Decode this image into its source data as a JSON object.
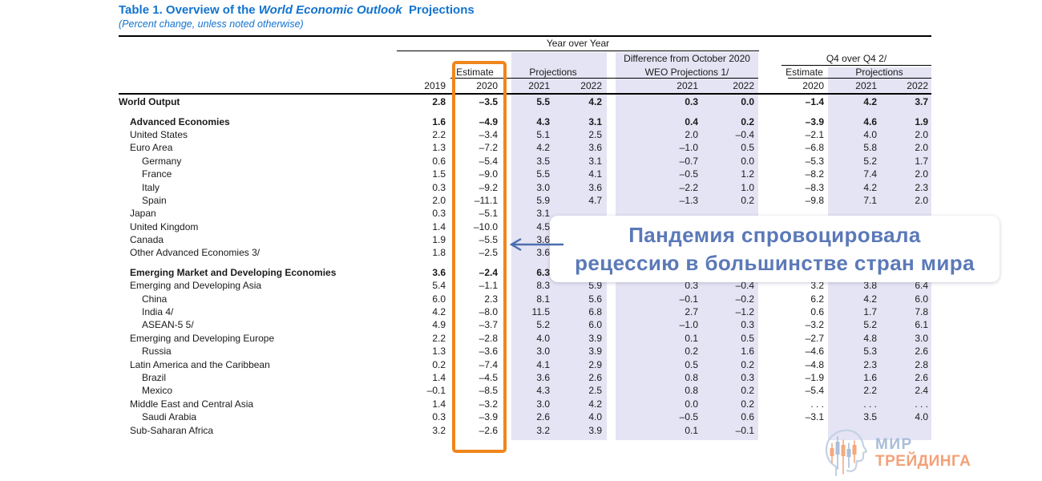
{
  "title": {
    "prefix": "Table 1. Overview of the ",
    "italic": "World Economic Outlook",
    "suffix": "  Projections",
    "subtitle": "(Percent change, unless noted otherwise)"
  },
  "header": {
    "year_over_year": "Year over Year",
    "difference_line1": "Difference from October 2020",
    "difference_line2": "WEO Projections 1/",
    "q4_over_q4": "Q4 over Q4 2/",
    "estimate": "Estimate",
    "projections": "Projections",
    "q4_estimate": "Estimate",
    "q4_projections": "Projections",
    "years": [
      "2019",
      "2020",
      "2021",
      "2022",
      "2021",
      "2022",
      "2020",
      "2021",
      "2022"
    ]
  },
  "rows": [
    {
      "label": "World Output",
      "indent": 0,
      "bold": true,
      "gap": false,
      "values": [
        "2.8",
        "–3.5",
        "5.5",
        "4.2",
        "0.3",
        "0.0",
        "–1.4",
        "4.2",
        "3.7"
      ]
    },
    {
      "label": "Advanced Economies",
      "indent": 1,
      "bold": true,
      "gap": true,
      "values": [
        "1.6",
        "–4.9",
        "4.3",
        "3.1",
        "0.4",
        "0.2",
        "–3.9",
        "4.6",
        "1.9"
      ]
    },
    {
      "label": "United States",
      "indent": 1,
      "bold": false,
      "gap": false,
      "values": [
        "2.2",
        "–3.4",
        "5.1",
        "2.5",
        "2.0",
        "–0.4",
        "–2.1",
        "4.0",
        "2.0"
      ]
    },
    {
      "label": "Euro Area",
      "indent": 1,
      "bold": false,
      "gap": false,
      "values": [
        "1.3",
        "–7.2",
        "4.2",
        "3.6",
        "–1.0",
        "0.5",
        "–6.8",
        "5.8",
        "2.0"
      ]
    },
    {
      "label": "Germany",
      "indent": 2,
      "bold": false,
      "gap": false,
      "values": [
        "0.6",
        "–5.4",
        "3.5",
        "3.1",
        "–0.7",
        "0.0",
        "–5.3",
        "5.2",
        "1.7"
      ]
    },
    {
      "label": "France",
      "indent": 2,
      "bold": false,
      "gap": false,
      "values": [
        "1.5",
        "–9.0",
        "5.5",
        "4.1",
        "–0.5",
        "1.2",
        "–8.2",
        "7.4",
        "2.0"
      ]
    },
    {
      "label": "Italy",
      "indent": 2,
      "bold": false,
      "gap": false,
      "values": [
        "0.3",
        "–9.2",
        "3.0",
        "3.6",
        "–2.2",
        "1.0",
        "–8.3",
        "4.2",
        "2.3"
      ]
    },
    {
      "label": "Spain",
      "indent": 2,
      "bold": false,
      "gap": false,
      "values": [
        "2.0",
        "–11.1",
        "5.9",
        "4.7",
        "–1.3",
        "0.2",
        "–9.8",
        "7.1",
        "2.0"
      ]
    },
    {
      "label": "Japan",
      "indent": 1,
      "bold": false,
      "gap": false,
      "values": [
        "0.3",
        "–5.1",
        "3.1",
        "",
        "",
        "",
        "",
        "",
        ""
      ]
    },
    {
      "label": "United Kingdom",
      "indent": 1,
      "bold": false,
      "gap": false,
      "values": [
        "1.4",
        "–10.0",
        "4.5",
        "",
        "",
        "",
        "",
        "",
        ""
      ]
    },
    {
      "label": "Canada",
      "indent": 1,
      "bold": false,
      "gap": false,
      "values": [
        "1.9",
        "–5.5",
        "3.6",
        "",
        "",
        "",
        "",
        "",
        ""
      ]
    },
    {
      "label": "Other Advanced Economies 3/",
      "indent": 1,
      "bold": false,
      "gap": false,
      "values": [
        "1.8",
        "–2.5",
        "3.6",
        "",
        "",
        "",
        "",
        "",
        ""
      ]
    },
    {
      "label": "Emerging Market and Developing Economies",
      "indent": 1,
      "bold": true,
      "gap": true,
      "values": [
        "3.6",
        "–2.4",
        "6.3",
        "",
        "",
        "",
        "",
        "",
        ""
      ]
    },
    {
      "label": "Emerging and Developing Asia",
      "indent": 1,
      "bold": false,
      "gap": false,
      "values": [
        "5.4",
        "–1.1",
        "8.3",
        "5.9",
        "0.3",
        "–0.4",
        "3.2",
        "3.8",
        "6.4"
      ]
    },
    {
      "label": "China",
      "indent": 2,
      "bold": false,
      "gap": false,
      "values": [
        "6.0",
        "2.3",
        "8.1",
        "5.6",
        "–0.1",
        "–0.2",
        "6.2",
        "4.2",
        "6.0"
      ]
    },
    {
      "label": "India 4/",
      "indent": 2,
      "bold": false,
      "gap": false,
      "values": [
        "4.2",
        "–8.0",
        "11.5",
        "6.8",
        "2.7",
        "–1.2",
        "0.6",
        "1.7",
        "7.8"
      ]
    },
    {
      "label": "ASEAN-5 5/",
      "indent": 2,
      "bold": false,
      "gap": false,
      "values": [
        "4.9",
        "–3.7",
        "5.2",
        "6.0",
        "–1.0",
        "0.3",
        "–3.2",
        "5.2",
        "6.1"
      ]
    },
    {
      "label": "Emerging and Developing Europe",
      "indent": 1,
      "bold": false,
      "gap": false,
      "values": [
        "2.2",
        "–2.8",
        "4.0",
        "3.9",
        "0.1",
        "0.5",
        "–2.7",
        "4.8",
        "3.0"
      ]
    },
    {
      "label": "Russia",
      "indent": 2,
      "bold": false,
      "gap": false,
      "values": [
        "1.3",
        "–3.6",
        "3.0",
        "3.9",
        "0.2",
        "1.6",
        "–4.6",
        "5.3",
        "2.6"
      ]
    },
    {
      "label": "Latin America and the Caribbean",
      "indent": 1,
      "bold": false,
      "gap": false,
      "values": [
        "0.2",
        "–7.4",
        "4.1",
        "2.9",
        "0.5",
        "0.2",
        "–4.8",
        "2.3",
        "2.8"
      ]
    },
    {
      "label": "Brazil",
      "indent": 2,
      "bold": false,
      "gap": false,
      "values": [
        "1.4",
        "–4.5",
        "3.6",
        "2.6",
        "0.8",
        "0.3",
        "–1.9",
        "1.6",
        "2.6"
      ]
    },
    {
      "label": "Mexico",
      "indent": 2,
      "bold": false,
      "gap": false,
      "values": [
        "–0.1",
        "–8.5",
        "4.3",
        "2.5",
        "0.8",
        "0.2",
        "–5.4",
        "2.2",
        "2.4"
      ]
    },
    {
      "label": "Middle East and Central Asia",
      "indent": 1,
      "bold": false,
      "gap": false,
      "values": [
        "1.4",
        "–3.2",
        "3.0",
        "4.2",
        "0.0",
        "0.2",
        ". . .",
        ". . .",
        ". . ."
      ]
    },
    {
      "label": "Saudi Arabia",
      "indent": 2,
      "bold": false,
      "gap": false,
      "values": [
        "0.3",
        "–3.9",
        "2.6",
        "4.0",
        "–0.5",
        "0.6",
        "–3.1",
        "3.5",
        "4.0"
      ]
    },
    {
      "label": "Sub-Saharan Africa",
      "indent": 1,
      "bold": false,
      "gap": false,
      "values": [
        "3.2",
        "–2.6",
        "3.2",
        "3.9",
        "0.1",
        "–0.1",
        "",
        "",
        ""
      ]
    }
  ],
  "annotation": {
    "line1": "Пандемия спровоцировала",
    "line2": "рецессию в большинстве стран мира"
  },
  "logo": {
    "line1": "МИР",
    "line2": "ТРЕЙДИНГА"
  },
  "colors": {
    "title_blue": "#1273cf",
    "shade_lavender": "#e4e4f4",
    "highlight_orange": "#f0861c",
    "annotation_blue": "#5b79b8",
    "arrow_blue": "#4a6fae",
    "logo_blue": "#a9bdd6",
    "logo_orange": "#f3a178"
  }
}
